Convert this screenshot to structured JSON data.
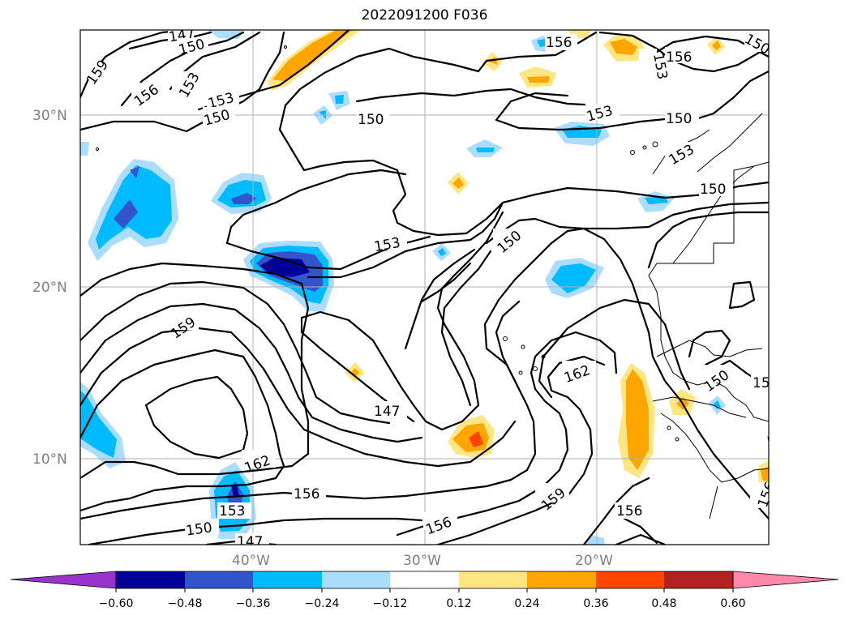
{
  "title": "2022091200 F036",
  "lat_labels": [
    "30°N",
    "20°N",
    "10°N"
  ],
  "lon_labels": [
    "40°W",
    "30°W",
    "20°W"
  ],
  "colorbar": {
    "tick_labels": [
      "−0.60",
      "−0.48",
      "−0.36",
      "−0.24",
      "−0.12",
      "0.12",
      "0.24",
      "0.36",
      "0.48",
      "0.60"
    ],
    "colors": [
      "#9933cc",
      "#000099",
      "#3355cc",
      "#00bbff",
      "#aaddff",
      "#ffffff",
      "#ffe680",
      "#ffa500",
      "#ff4500",
      "#b22222",
      "#ff88aa"
    ],
    "extend": "both"
  },
  "contour_labels": [
    "147",
    "150",
    "153",
    "156",
    "159",
    "162"
  ],
  "shading_colors": {
    "light_blue": "#aaddff",
    "cyan": "#00bbff",
    "mid_blue": "#3355cc",
    "dark_blue": "#000099",
    "yellow": "#ffe680",
    "orange": "#ffa500",
    "red": "#ff4500"
  }
}
